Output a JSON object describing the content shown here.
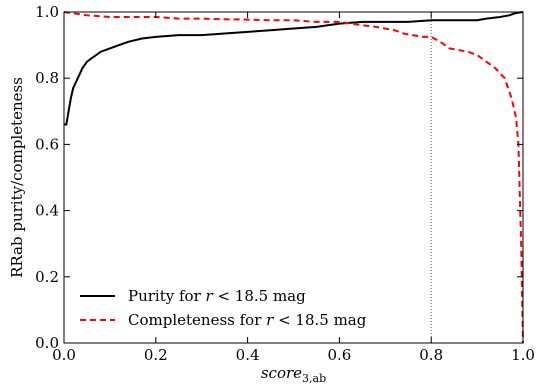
{
  "chart_data": {
    "type": "line",
    "xlabel": "score",
    "xlabel_sub": "3,ab",
    "ylabel": "RRab purity/completeness",
    "xlim": [
      0.0,
      1.0
    ],
    "ylim": [
      0.0,
      1.0
    ],
    "xticks": [
      "0.0",
      "0.2",
      "0.4",
      "0.6",
      "0.8",
      "1.0"
    ],
    "yticks": [
      "0.0",
      "0.2",
      "0.4",
      "0.6",
      "0.8",
      "1.0"
    ],
    "grid": false,
    "legend_position": "lower-left",
    "vline": {
      "x": 0.8,
      "style": "dotted"
    },
    "series": [
      {
        "name_parts": [
          "Purity for ",
          "r",
          " < 18.5 mag"
        ],
        "color": "#000000",
        "style": "solid",
        "points": [
          [
            0.0,
            0.66
          ],
          [
            0.005,
            0.66
          ],
          [
            0.01,
            0.7
          ],
          [
            0.015,
            0.74
          ],
          [
            0.02,
            0.77
          ],
          [
            0.03,
            0.8
          ],
          [
            0.04,
            0.83
          ],
          [
            0.05,
            0.85
          ],
          [
            0.06,
            0.86
          ],
          [
            0.07,
            0.87
          ],
          [
            0.08,
            0.88
          ],
          [
            0.1,
            0.89
          ],
          [
            0.12,
            0.9
          ],
          [
            0.14,
            0.91
          ],
          [
            0.17,
            0.92
          ],
          [
            0.2,
            0.925
          ],
          [
            0.25,
            0.93
          ],
          [
            0.3,
            0.93
          ],
          [
            0.35,
            0.935
          ],
          [
            0.4,
            0.94
          ],
          [
            0.45,
            0.945
          ],
          [
            0.5,
            0.95
          ],
          [
            0.55,
            0.955
          ],
          [
            0.6,
            0.965
          ],
          [
            0.65,
            0.97
          ],
          [
            0.7,
            0.97
          ],
          [
            0.75,
            0.97
          ],
          [
            0.8,
            0.975
          ],
          [
            0.85,
            0.975
          ],
          [
            0.9,
            0.975
          ],
          [
            0.92,
            0.98
          ],
          [
            0.95,
            0.985
          ],
          [
            0.97,
            0.99
          ],
          [
            0.98,
            0.995
          ],
          [
            0.99,
            0.998
          ],
          [
            1.0,
            1.0
          ]
        ]
      },
      {
        "name_parts": [
          "Completeness for ",
          "r",
          " < 18.5 mag"
        ],
        "color": "#ff0000",
        "style": "dashed",
        "points": [
          [
            0.0,
            1.0
          ],
          [
            0.05,
            0.99
          ],
          [
            0.1,
            0.985
          ],
          [
            0.15,
            0.985
          ],
          [
            0.2,
            0.985
          ],
          [
            0.25,
            0.98
          ],
          [
            0.3,
            0.98
          ],
          [
            0.35,
            0.978
          ],
          [
            0.4,
            0.977
          ],
          [
            0.45,
            0.975
          ],
          [
            0.5,
            0.975
          ],
          [
            0.55,
            0.97
          ],
          [
            0.6,
            0.97
          ],
          [
            0.65,
            0.96
          ],
          [
            0.68,
            0.955
          ],
          [
            0.7,
            0.95
          ],
          [
            0.72,
            0.945
          ],
          [
            0.74,
            0.935
          ],
          [
            0.76,
            0.93
          ],
          [
            0.78,
            0.925
          ],
          [
            0.8,
            0.925
          ],
          [
            0.82,
            0.91
          ],
          [
            0.84,
            0.89
          ],
          [
            0.86,
            0.885
          ],
          [
            0.88,
            0.88
          ],
          [
            0.9,
            0.87
          ],
          [
            0.92,
            0.85
          ],
          [
            0.94,
            0.83
          ],
          [
            0.96,
            0.8
          ],
          [
            0.975,
            0.74
          ],
          [
            0.985,
            0.68
          ],
          [
            0.99,
            0.6
          ],
          [
            0.993,
            0.45
          ],
          [
            0.996,
            0.3
          ],
          [
            0.998,
            0.15
          ],
          [
            1.0,
            0.0
          ]
        ]
      }
    ]
  }
}
